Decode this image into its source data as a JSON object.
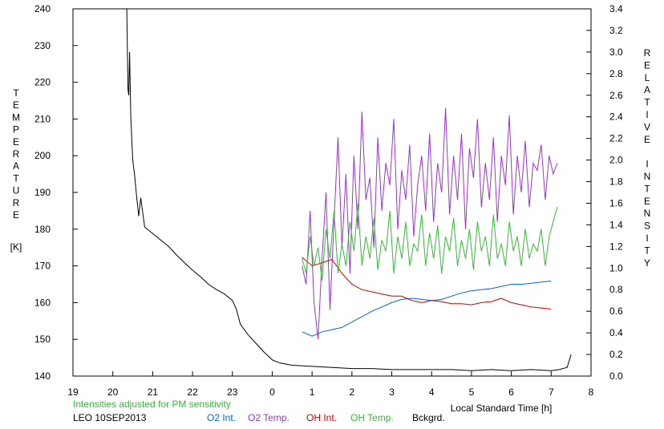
{
  "chart_data": {
    "type": "line",
    "left_axis": {
      "label_letters": [
        "T",
        "E",
        "M",
        "P",
        "E",
        "R",
        "A",
        "T",
        "U",
        "R",
        "E"
      ],
      "unit": "[K]",
      "ylim": [
        140,
        240
      ],
      "ticks": [
        "140",
        "150",
        "160",
        "170",
        "180",
        "190",
        "200",
        "210",
        "220",
        "230",
        "240"
      ]
    },
    "right_axis": {
      "label_letters": [
        "R",
        "E",
        "L",
        "A",
        "T",
        "I",
        "V",
        "E",
        "",
        "I",
        "N",
        "T",
        "E",
        "N",
        "S",
        "I",
        "T",
        "Y"
      ],
      "ylim": [
        0.0,
        3.4
      ],
      "ticks": [
        "0.0",
        "0.2",
        "0.4",
        "0.6",
        "0.8",
        "1.0",
        "1.2",
        "1.4",
        "1.6",
        "1.8",
        "2.0",
        "2.2",
        "2.4",
        "2.6",
        "2.8",
        "3.0",
        "3.2",
        "3.4"
      ]
    },
    "x_axis": {
      "label": "Local Standard Time [h]",
      "ticks": [
        "19",
        "20",
        "21",
        "22",
        "23",
        "0",
        "1",
        "2",
        "3",
        "4",
        "5",
        "6",
        "7",
        "8"
      ],
      "xlim": [
        19,
        32
      ]
    },
    "note": "Intensities adjusted for PM sensitivity",
    "caption": "LEO 10SEP2013",
    "grid": false,
    "series": [
      {
        "name": "O2 Int.",
        "axis": "right",
        "color": "#0066cc",
        "x": [
          24.75,
          25.0,
          25.25,
          25.5,
          25.75,
          26.0,
          26.25,
          26.5,
          26.75,
          27.0,
          27.25,
          27.5,
          27.75,
          28.0,
          28.25,
          28.5,
          28.75,
          29.0,
          29.25,
          29.5,
          29.75,
          30.0,
          30.25,
          30.5,
          30.75,
          31.0
        ],
        "y": [
          0.41,
          0.37,
          0.41,
          0.43,
          0.45,
          0.5,
          0.55,
          0.6,
          0.64,
          0.68,
          0.71,
          0.72,
          0.71,
          0.7,
          0.71,
          0.74,
          0.77,
          0.79,
          0.8,
          0.81,
          0.83,
          0.85,
          0.85,
          0.86,
          0.87,
          0.88
        ]
      },
      {
        "name": "O2 Temp.",
        "axis": "left",
        "color": "#9933cc",
        "x": [
          24.75,
          24.85,
          24.95,
          25.05,
          25.15,
          25.25,
          25.35,
          25.45,
          25.55,
          25.65,
          25.75,
          25.85,
          25.95,
          26.05,
          26.15,
          26.25,
          26.35,
          26.45,
          26.55,
          26.65,
          26.75,
          26.85,
          26.95,
          27.05,
          27.15,
          27.25,
          27.35,
          27.45,
          27.55,
          27.65,
          27.75,
          27.85,
          27.95,
          28.05,
          28.15,
          28.25,
          28.35,
          28.45,
          28.55,
          28.65,
          28.75,
          28.85,
          28.95,
          29.05,
          29.15,
          29.25,
          29.35,
          29.45,
          29.55,
          29.65,
          29.75,
          29.85,
          29.95,
          30.05,
          30.15,
          30.25,
          30.35,
          30.45,
          30.55,
          30.65,
          30.75,
          30.85,
          30.95,
          31.05,
          31.15
        ],
        "y": [
          170,
          165,
          185,
          160,
          150,
          172,
          190,
          158,
          182,
          205,
          175,
          195,
          168,
          200,
          180,
          212,
          188,
          194,
          175,
          205,
          185,
          198,
          192,
          210,
          180,
          196,
          188,
          203,
          178,
          192,
          200,
          185,
          206,
          182,
          198,
          190,
          213,
          184,
          200,
          188,
          206,
          180,
          202,
          194,
          210,
          186,
          198,
          188,
          205,
          182,
          200,
          192,
          211,
          184,
          200,
          190,
          204,
          186,
          198,
          196,
          203,
          188,
          200,
          195,
          198
        ]
      },
      {
        "name": "OH Int.",
        "axis": "right",
        "color": "#cc0000",
        "x": [
          24.75,
          25.0,
          25.25,
          25.5,
          25.75,
          26.0,
          26.25,
          26.5,
          26.75,
          27.0,
          27.25,
          27.5,
          27.75,
          28.0,
          28.25,
          28.5,
          28.75,
          29.0,
          29.25,
          29.5,
          29.75,
          30.0,
          30.25,
          30.5,
          30.75,
          31.0
        ],
        "y": [
          1.1,
          1.02,
          1.05,
          1.08,
          0.95,
          0.85,
          0.8,
          0.78,
          0.76,
          0.74,
          0.74,
          0.7,
          0.68,
          0.7,
          0.69,
          0.67,
          0.67,
          0.66,
          0.68,
          0.69,
          0.72,
          0.68,
          0.66,
          0.64,
          0.63,
          0.62
        ]
      },
      {
        "name": "OH Temp.",
        "axis": "left",
        "color": "#33bb33",
        "x": [
          24.75,
          24.85,
          24.95,
          25.05,
          25.15,
          25.25,
          25.35,
          25.45,
          25.55,
          25.65,
          25.75,
          25.85,
          25.95,
          26.05,
          26.15,
          26.25,
          26.35,
          26.45,
          26.55,
          26.65,
          26.75,
          26.85,
          26.95,
          27.05,
          27.15,
          27.25,
          27.35,
          27.45,
          27.55,
          27.65,
          27.75,
          27.85,
          27.95,
          28.05,
          28.15,
          28.25,
          28.35,
          28.45,
          28.55,
          28.65,
          28.75,
          28.85,
          28.95,
          29.05,
          29.15,
          29.25,
          29.35,
          29.45,
          29.55,
          29.65,
          29.75,
          29.85,
          29.95,
          30.05,
          30.15,
          30.25,
          30.35,
          30.45,
          30.55,
          30.65,
          30.75,
          30.85,
          30.95,
          31.05,
          31.15
        ],
        "y": [
          172,
          168,
          178,
          170,
          175,
          166,
          180,
          172,
          185,
          168,
          176,
          170,
          182,
          174,
          187,
          170,
          178,
          172,
          183,
          169,
          177,
          174,
          185,
          168,
          178,
          172,
          182,
          170,
          176,
          174,
          184,
          170,
          179,
          172,
          181,
          168,
          178,
          174,
          183,
          170,
          177,
          172,
          180,
          169,
          182,
          174,
          178,
          170,
          184,
          172,
          176,
          170,
          182,
          174,
          178,
          170,
          180,
          172,
          176,
          174,
          180,
          170,
          178,
          182,
          186
        ]
      },
      {
        "name": "Bckgrd.",
        "axis": "right",
        "color": "#000000",
        "x": [
          20.35,
          20.38,
          20.4,
          20.42,
          20.45,
          20.5,
          20.55,
          20.6,
          20.65,
          20.7,
          20.8,
          20.9,
          21.0,
          21.2,
          21.4,
          21.6,
          21.8,
          22.0,
          22.2,
          22.4,
          22.6,
          22.8,
          23.0,
          23.1,
          23.2,
          23.4,
          23.6,
          23.8,
          24.0,
          24.2,
          24.5,
          25.0,
          25.5,
          26.0,
          26.5,
          27.0,
          27.5,
          28.0,
          28.5,
          29.0,
          29.5,
          30.0,
          30.5,
          31.0,
          31.2,
          31.4,
          31.5
        ],
        "y": [
          3.4,
          2.65,
          2.6,
          3.0,
          2.4,
          2.0,
          1.85,
          1.65,
          1.48,
          1.65,
          1.38,
          1.35,
          1.32,
          1.26,
          1.2,
          1.12,
          1.05,
          0.98,
          0.92,
          0.85,
          0.8,
          0.76,
          0.7,
          0.62,
          0.48,
          0.38,
          0.3,
          0.22,
          0.15,
          0.12,
          0.1,
          0.09,
          0.08,
          0.07,
          0.07,
          0.06,
          0.06,
          0.06,
          0.06,
          0.05,
          0.06,
          0.05,
          0.06,
          0.05,
          0.06,
          0.08,
          0.2
        ]
      }
    ]
  },
  "legend": [
    {
      "label": "O2 Int.",
      "color": "#0066cc"
    },
    {
      "label": "O2 Temp.",
      "color": "#9933cc"
    },
    {
      "label": "OH Int.",
      "color": "#cc0000"
    },
    {
      "label": "OH Temp.",
      "color": "#33bb33"
    },
    {
      "label": "Bckgrd.",
      "color": "#000000"
    }
  ],
  "note_color": "#33bb33"
}
